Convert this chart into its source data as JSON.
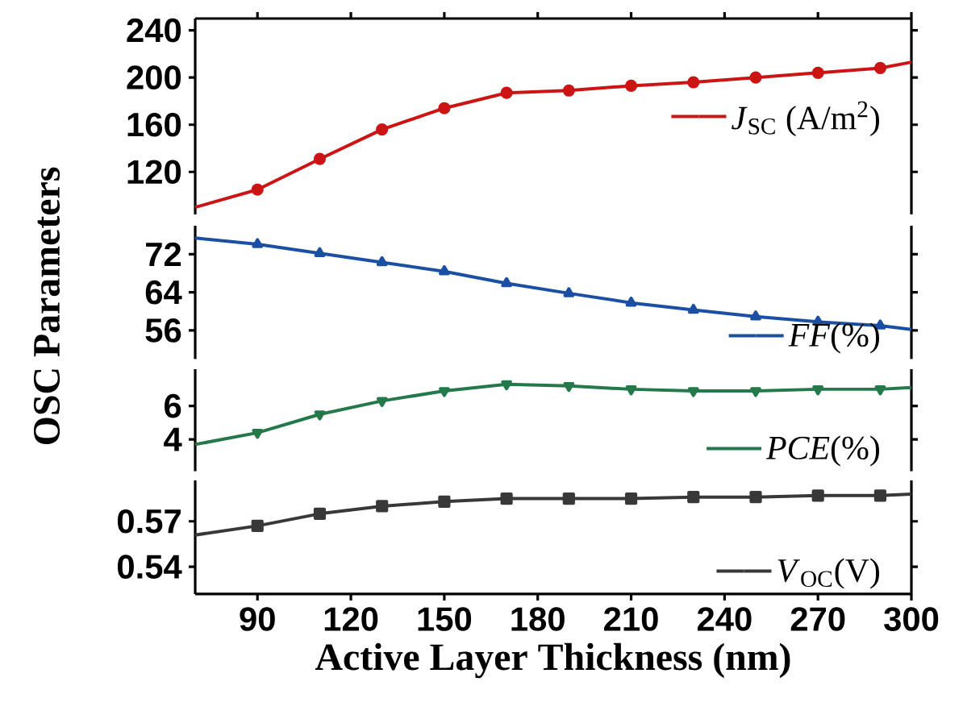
{
  "chart_data": [
    {
      "type": "line",
      "ylabel": "OSC Parameters",
      "x": [
        70,
        90,
        110,
        130,
        150,
        170,
        190,
        210,
        230,
        250,
        270,
        290,
        300
      ],
      "xlim": [
        70,
        300
      ],
      "xticks": [
        90,
        120,
        150,
        180,
        210,
        240,
        270,
        300
      ],
      "ylim": [
        84,
        250
      ],
      "yticks": [
        120,
        160,
        200,
        240
      ],
      "tick_labels": "y",
      "legend": "right",
      "marker": "circle",
      "series": [
        {
          "name": "*J*$_{SC}$ (A/m$^{2}$)",
          "color": "#cc1414",
          "values": [
            90,
            105,
            131,
            156,
            174,
            187,
            189,
            193,
            196,
            200,
            204,
            208,
            213
          ]
        }
      ]
    },
    {
      "type": "line",
      "x": [
        70,
        90,
        110,
        130,
        150,
        170,
        190,
        210,
        230,
        250,
        270,
        290,
        300
      ],
      "xlim": [
        70,
        300
      ],
      "ylim": [
        50,
        78
      ],
      "yticks": [
        56,
        64,
        72
      ],
      "tick_labels": "y",
      "legend": "bottom right",
      "marker": "triangle",
      "series": [
        {
          "name": "*FF*(%)",
          "color": "#1a4fa3",
          "values": [
            75.4,
            74.1,
            72.2,
            70.3,
            68.4,
            65.9,
            63.8,
            61.8,
            60.3,
            58.9,
            57.8,
            57.0,
            56.2
          ]
        }
      ]
    },
    {
      "type": "line",
      "x": [
        70,
        90,
        110,
        130,
        150,
        170,
        190,
        210,
        230,
        250,
        270,
        290,
        300
      ],
      "xlim": [
        70,
        300
      ],
      "ylim": [
        2.1,
        8.2
      ],
      "yticks": [
        4,
        6
      ],
      "tick_labels": "y",
      "legend": "bottom right",
      "marker": "triangle-down",
      "series": [
        {
          "name": "*PCE*(%)",
          "color": "#23794a",
          "values": [
            3.7,
            4.4,
            5.5,
            6.3,
            6.9,
            7.3,
            7.2,
            7.0,
            6.9,
            6.9,
            7.0,
            7.0,
            7.1
          ]
        }
      ]
    },
    {
      "type": "line",
      "xlabel": "Active Layer Thickness (nm)",
      "x": [
        70,
        90,
        110,
        130,
        150,
        170,
        190,
        210,
        230,
        250,
        270,
        290,
        300
      ],
      "xlim": [
        70,
        300
      ],
      "xticks": [
        90,
        120,
        150,
        180,
        210,
        240,
        270,
        300
      ],
      "ylim": [
        0.522,
        0.597
      ],
      "yticks": [
        0.54,
        0.57
      ],
      "legend": "bottom right",
      "marker": "square",
      "series": [
        {
          "name": "*V*$_{OC}$(V)",
          "color": "#383838",
          "values": [
            0.561,
            0.567,
            0.575,
            0.58,
            0.583,
            0.585,
            0.585,
            0.585,
            0.586,
            0.586,
            0.587,
            0.587,
            0.588
          ]
        }
      ]
    }
  ]
}
